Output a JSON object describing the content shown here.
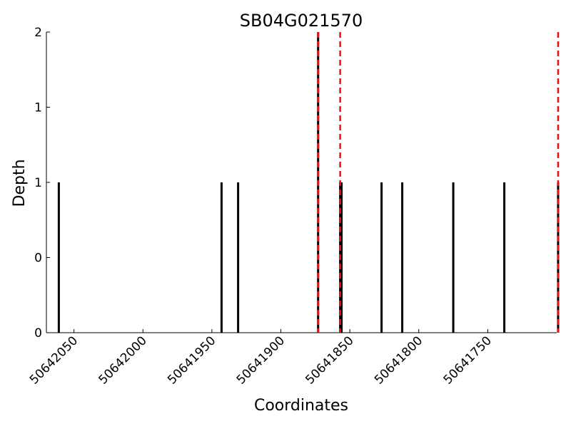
{
  "chart_data": {
    "type": "bar",
    "title": "SB04G021570",
    "xlabel": "Coordinates",
    "ylabel": "Depth",
    "x_reversed": true,
    "xlim": [
      50642070,
      50641700
    ],
    "ylim": [
      0,
      2
    ],
    "y_ticks": [
      0,
      0.5,
      1,
      1.5,
      2
    ],
    "y_tick_labels": [
      "0",
      "0",
      "1",
      "1",
      "2"
    ],
    "x_ticks": [
      50642050,
      50642000,
      50641950,
      50641900,
      50641850,
      50641800,
      50641750
    ],
    "x_tick_labels": [
      "50642050",
      "50642000",
      "50641950",
      "50641900",
      "50641850",
      "50641800",
      "50641750"
    ],
    "bars": [
      {
        "x": 50642061,
        "value": 1
      },
      {
        "x": 50641943,
        "value": 1
      },
      {
        "x": 50641931,
        "value": 1
      },
      {
        "x": 50641873,
        "value": 2
      },
      {
        "x": 50641857,
        "value": 1
      },
      {
        "x": 50641856,
        "value": 1
      },
      {
        "x": 50641827,
        "value": 1
      },
      {
        "x": 50641812,
        "value": 1
      },
      {
        "x": 50641775,
        "value": 1
      },
      {
        "x": 50641738,
        "value": 1
      },
      {
        "x": 50641699,
        "value": 1
      }
    ],
    "markers": {
      "style": "dashed",
      "color": "#ee1111",
      "x": [
        50641873,
        50641857,
        50641699
      ]
    },
    "grid": false,
    "bar_color": "#000000"
  }
}
